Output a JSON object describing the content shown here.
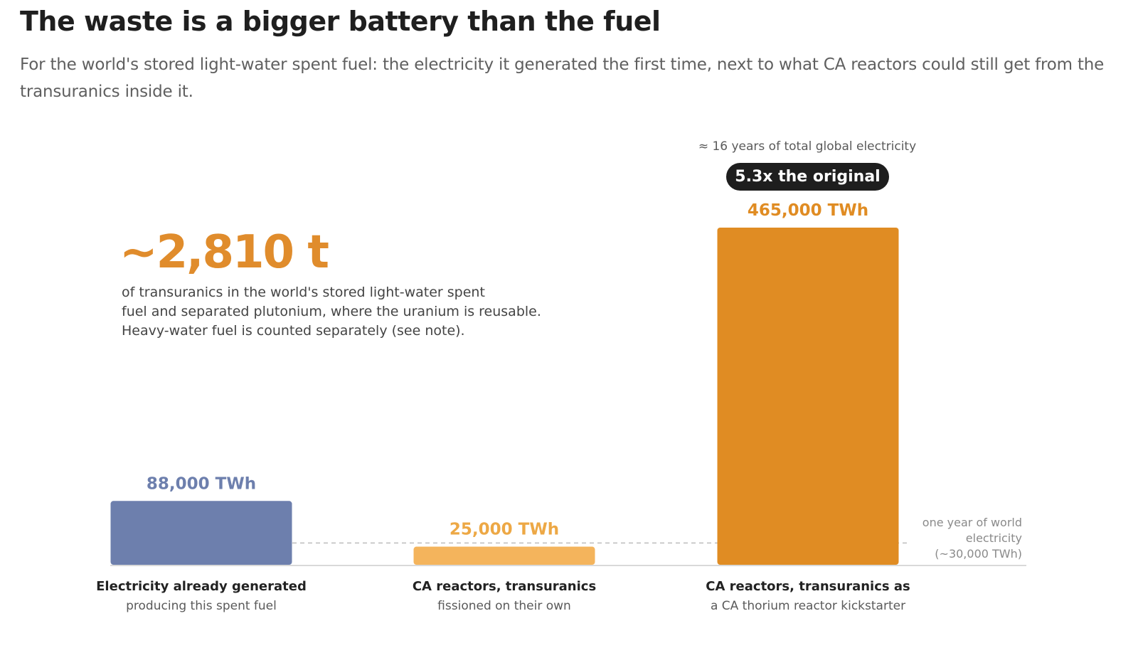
{
  "title": "The waste is a bigger battery than the fuel",
  "subtitle": "For the world's stored light-water spent fuel: the electricity it generated the first time, next to what CA reactors could still get from the transuranics inside it.",
  "highlight": {
    "value": "~2,810 t",
    "note_lines": [
      "of transuranics in the world's stored light-water spent",
      "fuel and separated plutonium, where the uranium is reusable.",
      "Heavy-water fuel is counted separately (see note)."
    ]
  },
  "colors": {
    "generated": "#6d7fad",
    "own": "#f4b45c",
    "kickstarter": "#e08c23",
    "generated_label": "#6d7fad",
    "own_label": "#eda845",
    "kickstarter_label": "#e08c23",
    "badge_bg": "#1e1e1e",
    "reference_line": "#bdbdbd",
    "baseline": "#d9d9d9"
  },
  "chart_data": {
    "type": "bar",
    "unit": "TWh",
    "categories": [
      "Electricity already generated",
      "CA reactors, transuranics",
      "CA reactors, transuranics as"
    ],
    "category_sublabels": [
      "producing this spent fuel",
      "fissioned on their own",
      "a CA thorium reactor kickstarter"
    ],
    "values": [
      88000,
      25000,
      465000
    ],
    "value_labels": [
      "88,000 TWh",
      "25,000 TWh",
      "465,000 TWh"
    ],
    "reference_line": {
      "value": 30000,
      "label_lines": [
        "one year of world",
        "electricity",
        "(~30,000 TWh)"
      ]
    },
    "annotation": {
      "bar_index": 2,
      "text": "≈ 16 years of total global electricity",
      "badge": "5.3x the original"
    },
    "xlabel": "",
    "ylabel": "",
    "grid": false,
    "legend": "none"
  }
}
